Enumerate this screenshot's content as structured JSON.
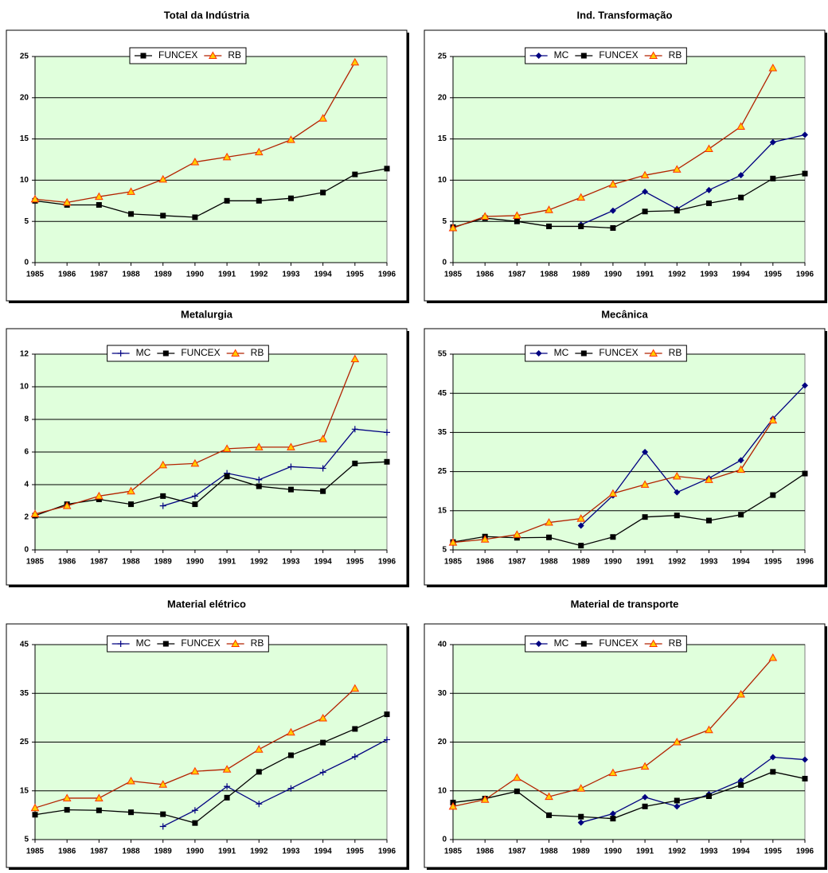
{
  "chart_data": [
    {
      "type": "line",
      "title": "Total da Indústria",
      "categories": [
        "1985",
        "1986",
        "1987",
        "1988",
        "1989",
        "1990",
        "1991",
        "1992",
        "1993",
        "1994",
        "1995",
        "1996"
      ],
      "ylim": [
        0,
        25
      ],
      "yticks": [
        0,
        5,
        10,
        15,
        20,
        25
      ],
      "grid": true,
      "legend": "top",
      "series": [
        {
          "name": "FUNCEX",
          "color": "#000000",
          "marker": "square",
          "marker_fill": "#000000",
          "values": [
            7.5,
            7.0,
            7.0,
            5.9,
            5.7,
            5.5,
            7.5,
            7.5,
            7.8,
            8.5,
            10.7,
            11.4
          ]
        },
        {
          "name": "RB",
          "color": "#b22200",
          "marker": "triangle",
          "marker_fill": "#ffcc00",
          "values": [
            7.7,
            7.3,
            8.0,
            8.6,
            10.1,
            12.2,
            12.8,
            13.4,
            14.9,
            17.5,
            24.3,
            null
          ]
        }
      ]
    },
    {
      "type": "line",
      "title": "Ind. Transformação",
      "categories": [
        "1985",
        "1986",
        "1987",
        "1988",
        "1989",
        "1990",
        "1991",
        "1992",
        "1993",
        "1994",
        "1995",
        "1996"
      ],
      "ylim": [
        0,
        25
      ],
      "yticks": [
        0,
        5,
        10,
        15,
        20,
        25
      ],
      "grid": true,
      "legend": "top",
      "series": [
        {
          "name": "MC",
          "color": "#000080",
          "marker": "diamond",
          "marker_fill": "#000080",
          "values": [
            null,
            null,
            null,
            null,
            4.6,
            6.3,
            8.6,
            6.5,
            8.8,
            10.6,
            14.6,
            15.5
          ]
        },
        {
          "name": "FUNCEX",
          "color": "#000000",
          "marker": "square",
          "marker_fill": "#000000",
          "values": [
            4.3,
            5.4,
            5.0,
            4.4,
            4.4,
            4.2,
            6.2,
            6.3,
            7.2,
            7.9,
            10.2,
            10.8
          ]
        },
        {
          "name": "RB",
          "color": "#b22200",
          "marker": "triangle",
          "marker_fill": "#ffcc00",
          "values": [
            4.2,
            5.6,
            5.7,
            6.4,
            7.9,
            9.5,
            10.6,
            11.3,
            13.8,
            16.5,
            23.6,
            null
          ]
        }
      ]
    },
    {
      "type": "line",
      "title": "Metalurgia",
      "categories": [
        "1985",
        "1986",
        "1987",
        "1988",
        "1989",
        "1990",
        "1991",
        "1992",
        "1993",
        "1994",
        "1995",
        "1996"
      ],
      "ylim": [
        0,
        12
      ],
      "yticks": [
        0,
        2,
        4,
        6,
        8,
        10,
        12
      ],
      "grid": true,
      "legend": "top",
      "series": [
        {
          "name": "MC",
          "color": "#000080",
          "marker": "plus",
          "marker_fill": "#000080",
          "values": [
            null,
            null,
            null,
            null,
            2.7,
            3.3,
            4.7,
            4.3,
            5.1,
            5.0,
            7.4,
            7.2
          ]
        },
        {
          "name": "FUNCEX",
          "color": "#000000",
          "marker": "square",
          "marker_fill": "#000000",
          "values": [
            2.1,
            2.8,
            3.1,
            2.8,
            3.3,
            2.8,
            4.5,
            3.9,
            3.7,
            3.6,
            5.3,
            5.4
          ]
        },
        {
          "name": "RB",
          "color": "#b22200",
          "marker": "triangle",
          "marker_fill": "#ffcc00",
          "values": [
            2.2,
            2.7,
            3.3,
            3.6,
            5.2,
            5.3,
            6.2,
            6.3,
            6.3,
            6.8,
            11.7,
            null
          ]
        }
      ]
    },
    {
      "type": "line",
      "title": "Mecânica",
      "categories": [
        "1985",
        "1986",
        "1987",
        "1988",
        "1989",
        "1990",
        "1991",
        "1992",
        "1993",
        "1994",
        "1995",
        "1996"
      ],
      "ylim": [
        5,
        55
      ],
      "yticks": [
        5,
        15,
        25,
        35,
        45,
        55
      ],
      "grid": true,
      "legend": "top",
      "series": [
        {
          "name": "MC",
          "color": "#000080",
          "marker": "diamond",
          "marker_fill": "#000080",
          "values": [
            null,
            null,
            null,
            null,
            11.2,
            18.9,
            30.0,
            19.7,
            23.3,
            27.9,
            38.5,
            47.0
          ]
        },
        {
          "name": "FUNCEX",
          "color": "#000000",
          "marker": "square",
          "marker_fill": "#000000",
          "values": [
            7.0,
            8.4,
            8.1,
            8.2,
            6.1,
            8.3,
            13.4,
            13.8,
            12.5,
            14.0,
            19.0,
            24.5
          ]
        },
        {
          "name": "RB",
          "color": "#b22200",
          "marker": "triangle",
          "marker_fill": "#ffcc00",
          "values": [
            6.9,
            7.7,
            8.9,
            12.0,
            13.0,
            19.4,
            21.7,
            23.8,
            22.9,
            25.5,
            38.1,
            null
          ]
        }
      ]
    },
    {
      "type": "line",
      "title": "Material elétrico",
      "categories": [
        "1985",
        "1986",
        "1987",
        "1988",
        "1989",
        "1990",
        "1991",
        "1992",
        "1993",
        "1994",
        "1995",
        "1996"
      ],
      "ylim": [
        5,
        45
      ],
      "yticks": [
        5,
        15,
        25,
        35,
        45
      ],
      "grid": true,
      "legend": "top",
      "series": [
        {
          "name": "MC",
          "color": "#000080",
          "marker": "plus",
          "marker_fill": "#000080",
          "values": [
            null,
            null,
            null,
            null,
            7.7,
            11.0,
            15.9,
            12.3,
            15.5,
            18.8,
            22.0,
            25.5
          ]
        },
        {
          "name": "FUNCEX",
          "color": "#000000",
          "marker": "square",
          "marker_fill": "#000000",
          "values": [
            10.1,
            11.1,
            11.0,
            10.6,
            10.2,
            8.4,
            13.6,
            18.9,
            22.3,
            24.9,
            27.7,
            30.7
          ]
        },
        {
          "name": "RB",
          "color": "#b22200",
          "marker": "triangle",
          "marker_fill": "#ffcc00",
          "values": [
            11.5,
            13.5,
            13.5,
            17.0,
            16.3,
            19.0,
            19.4,
            23.5,
            27.0,
            29.9,
            36.0,
            null
          ]
        }
      ]
    },
    {
      "type": "line",
      "title": "Material de transporte",
      "categories": [
        "1985",
        "1986",
        "1987",
        "1988",
        "1989",
        "1990",
        "1991",
        "1992",
        "1993",
        "1994",
        "1995",
        "1996"
      ],
      "ylim": [
        0,
        40
      ],
      "yticks": [
        0,
        10,
        20,
        30,
        40
      ],
      "grid": true,
      "legend": "top",
      "series": [
        {
          "name": "MC",
          "color": "#000080",
          "marker": "diamond",
          "marker_fill": "#000080",
          "values": [
            null,
            null,
            null,
            null,
            3.5,
            5.3,
            8.7,
            6.8,
            9.3,
            12.1,
            16.9,
            16.4
          ]
        },
        {
          "name": "FUNCEX",
          "color": "#000000",
          "marker": "square",
          "marker_fill": "#000000",
          "values": [
            7.6,
            8.4,
            9.9,
            5.0,
            4.7,
            4.3,
            6.8,
            8.0,
            8.9,
            11.2,
            13.9,
            12.5
          ]
        },
        {
          "name": "RB",
          "color": "#b22200",
          "marker": "triangle",
          "marker_fill": "#ffcc00",
          "values": [
            6.8,
            8.2,
            12.7,
            8.8,
            10.5,
            13.7,
            15.0,
            20.0,
            22.5,
            29.8,
            37.3,
            null
          ]
        }
      ]
    }
  ]
}
